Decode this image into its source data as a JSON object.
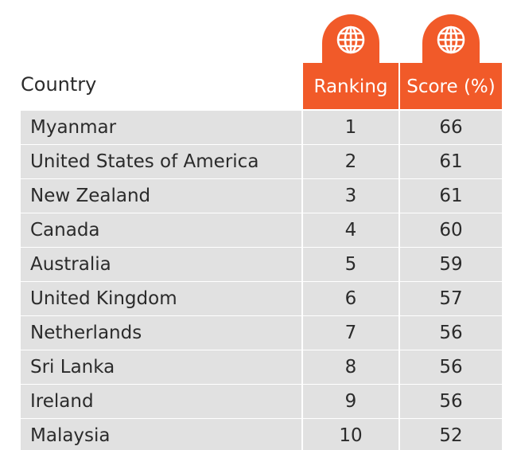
{
  "table": {
    "headers": {
      "country": "Country",
      "ranking": "Ranking",
      "score": "Score (%)"
    },
    "rows": [
      {
        "country": "Myanmar",
        "ranking": "1",
        "score": "66"
      },
      {
        "country": "United States of America",
        "ranking": "2",
        "score": "61"
      },
      {
        "country": "New Zealand",
        "ranking": "3",
        "score": "61"
      },
      {
        "country": "Canada",
        "ranking": "4",
        "score": "60"
      },
      {
        "country": "Australia",
        "ranking": "5",
        "score": "59"
      },
      {
        "country": "United Kingdom",
        "ranking": "6",
        "score": "57"
      },
      {
        "country": "Netherlands",
        "ranking": "7",
        "score": "56"
      },
      {
        "country": "Sri Lanka",
        "ranking": "8",
        "score": "56"
      },
      {
        "country": "Ireland",
        "ranking": "9",
        "score": "56"
      },
      {
        "country": "Malaysia",
        "ranking": "10",
        "score": "52"
      }
    ]
  },
  "icons": {
    "ranking_header": "globe-icon",
    "score_header": "globe-icon"
  },
  "colors": {
    "accent": "#f15a29",
    "row_background": "#e1e1e1",
    "text": "#2b2b2b",
    "header_text": "#ffffff"
  },
  "chart_data": {
    "type": "table",
    "columns": [
      "Country",
      "Ranking",
      "Score (%)"
    ],
    "rows": [
      [
        "Myanmar",
        1,
        66
      ],
      [
        "United States of America",
        2,
        61
      ],
      [
        "New Zealand",
        3,
        61
      ],
      [
        "Canada",
        4,
        60
      ],
      [
        "Australia",
        5,
        59
      ],
      [
        "United Kingdom",
        6,
        57
      ],
      [
        "Netherlands",
        7,
        56
      ],
      [
        "Sri Lanka",
        8,
        56
      ],
      [
        "Ireland",
        9,
        56
      ],
      [
        "Malaysia",
        10,
        52
      ]
    ]
  }
}
